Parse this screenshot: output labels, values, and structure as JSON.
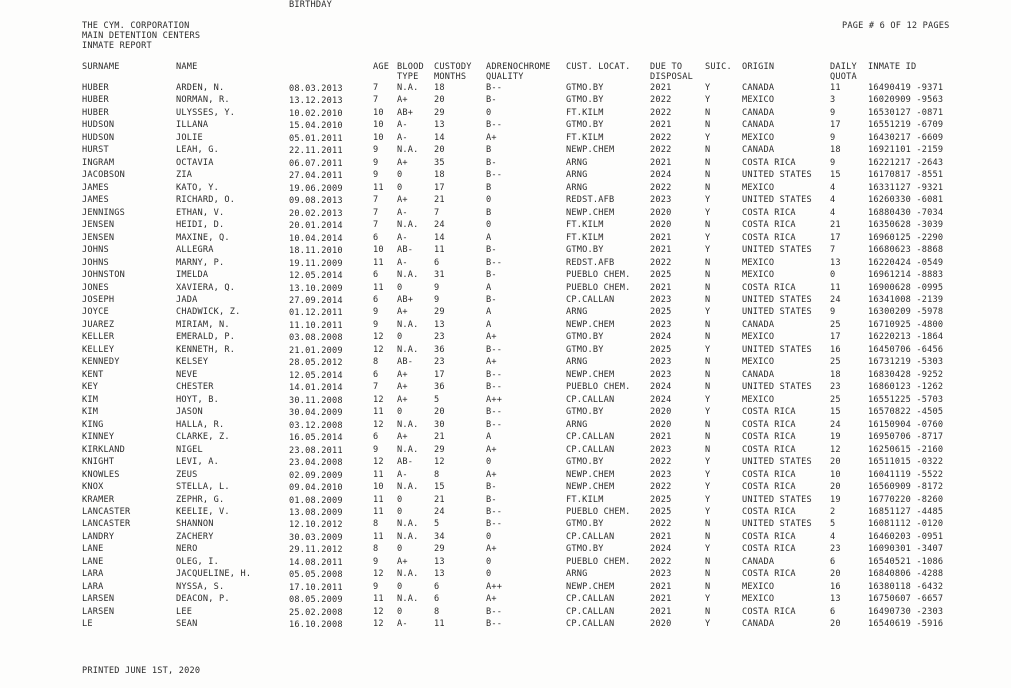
{
  "report": {
    "title_lines": [
      "THE CYM. CORPORATION",
      "MAIN DETENTION CENTERS",
      "INMATE REPORT"
    ],
    "page_label": "PAGE # 6 OF 12 PAGES",
    "footer": "PRINTED JUNE 1ST, 2020"
  },
  "columns": [
    [
      "SURNAME",
      ""
    ],
    [
      "NAME",
      ""
    ],
    [
      "BIRTHDAY",
      ""
    ],
    [
      "AGE",
      ""
    ],
    [
      "BLOOD",
      "TYPE"
    ],
    [
      "CUSTODY",
      "MONTHS"
    ],
    [
      "ADRENOCHROME",
      "QUALITY"
    ],
    [
      "CUST. LOCAT.",
      ""
    ],
    [
      "DUE TO",
      "DISPOSAL"
    ],
    [
      "SUIC.",
      ""
    ],
    [
      "ORIGIN",
      ""
    ],
    [
      "DAILY",
      "QUOTA"
    ],
    [
      "INMATE ID",
      ""
    ]
  ],
  "rows": [
    [
      "HUBER",
      "ARDEN, N.",
      "08.03.2013",
      "7",
      "N.A.",
      "18",
      "B--",
      "GTMO.BY",
      "2021",
      "Y",
      "CANADA",
      "11",
      "16490419 -9371"
    ],
    [
      "HUBER",
      "NORMAN, R.",
      "13.12.2013",
      "7",
      "A+",
      "20",
      "B-",
      "GTMO.BY",
      "2022",
      "Y",
      "MEXICO",
      "3",
      "16020909 -9563"
    ],
    [
      "HUBER",
      "ULYSSES, Y.",
      "10.02.2010",
      "10",
      "AB+",
      "29",
      "0",
      "FT.KILM",
      "2022",
      "N",
      "CANADA",
      "9",
      "16530127 -0871"
    ],
    [
      "HUDSON",
      "ILLANA",
      "15.04.2010",
      "10",
      "A-",
      "13",
      "B--",
      "GTMO.BY",
      "2021",
      "N",
      "CANADA",
      "17",
      "16551219 -6709"
    ],
    [
      "HUDSON",
      "JOLIE",
      "05.01.2011",
      "10",
      "A-",
      "14",
      "A+",
      "FT.KILM",
      "2022",
      "Y",
      "MEXICO",
      "9",
      "16430217 -6609"
    ],
    [
      "HURST",
      "LEAH, G.",
      "22.11.2011",
      "9",
      "N.A.",
      "20",
      "B",
      "NEWP.CHEM",
      "2022",
      "N",
      "CANADA",
      "18",
      "16921101 -2159"
    ],
    [
      "INGRAM",
      "OCTAVIA",
      "06.07.2011",
      "9",
      "A+",
      "35",
      "B-",
      "ARNG",
      "2021",
      "N",
      "COSTA RICA",
      "9",
      "16221217 -2643"
    ],
    [
      "JACOBSON",
      "ZIA",
      "27.04.2011",
      "9",
      "0",
      "18",
      "B--",
      "ARNG",
      "2024",
      "N",
      "UNITED STATES",
      "15",
      "16170817 -8551"
    ],
    [
      "JAMES",
      "KATO, Y.",
      "19.06.2009",
      "11",
      "0",
      "17",
      "B",
      "ARNG",
      "2022",
      "N",
      "MEXICO",
      "4",
      "16331127 -9321"
    ],
    [
      "JAMES",
      "RICHARD, O.",
      "09.08.2013",
      "7",
      "A+",
      "21",
      "0",
      "REDST.AFB",
      "2023",
      "Y",
      "UNITED STATES",
      "4",
      "16260330 -6081"
    ],
    [
      "JENNINGS",
      "ETHAN, V.",
      "20.02.2013",
      "7",
      "A-",
      "7",
      "B",
      "NEWP.CHEM",
      "2020",
      "Y",
      "COSTA RICA",
      "4",
      "16880430 -7034"
    ],
    [
      "JENSEN",
      "HEIDI, D.",
      "20.01.2014",
      "7",
      "N.A.",
      "24",
      "0",
      "FT.KILM",
      "2020",
      "N",
      "COSTA RICA",
      "21",
      "16350628 -3039"
    ],
    [
      "JENSEN",
      "MAXINE, Q.",
      "10.04.2014",
      "6",
      "A-",
      "14",
      "A",
      "FT.KILM",
      "2021",
      "Y",
      "COSTA RICA",
      "17",
      "16960125 -2290"
    ],
    [
      "JOHNS",
      "ALLEGRA",
      "18.11.2010",
      "10",
      "AB-",
      "11",
      "B-",
      "GTMO.BY",
      "2021",
      "Y",
      "UNITED STATES",
      "7",
      "16680623 -8868"
    ],
    [
      "JOHNS",
      "MARNY, P.",
      "19.11.2009",
      "11",
      "A-",
      "6",
      "B--",
      "REDST.AFB",
      "2022",
      "N",
      "MEXICO",
      "13",
      "16220424 -0549"
    ],
    [
      "JOHNSTON",
      "IMELDA",
      "12.05.2014",
      "6",
      "N.A.",
      "31",
      "B-",
      "PUEBLO CHEM.",
      "2025",
      "N",
      "MEXICO",
      "0",
      "16961214 -8883"
    ],
    [
      "JONES",
      "XAVIERA, Q.",
      "13.10.2009",
      "11",
      "0",
      "9",
      "A",
      "PUEBLO CHEM.",
      "2021",
      "N",
      "COSTA RICA",
      "11",
      "16900628 -0995"
    ],
    [
      "JOSEPH",
      "JADA",
      "27.09.2014",
      "6",
      "AB+",
      "9",
      "B-",
      "CP.CALLAN",
      "2023",
      "N",
      "UNITED STATES",
      "24",
      "16341008 -2139"
    ],
    [
      "JOYCE",
      "CHADWICK, Z.",
      "01.12.2011",
      "9",
      "A+",
      "29",
      "A",
      "ARNG",
      "2025",
      "Y",
      "UNITED STATES",
      "9",
      "16300209 -5978"
    ],
    [
      "JUAREZ",
      "MIRIAM, N.",
      "11.10.2011",
      "9",
      "N.A.",
      "13",
      "A",
      "NEWP.CHEM",
      "2023",
      "N",
      "CANADA",
      "25",
      "16710925 -4800"
    ],
    [
      "KELLER",
      "EMERALD, P.",
      "03.08.2008",
      "12",
      "0",
      "23",
      "A+",
      "GTMO.BY",
      "2024",
      "N",
      "MEXICO",
      "17",
      "16220213 -1864"
    ],
    [
      "KELLEY",
      "KENNETH, R.",
      "21.01.2009",
      "12",
      "N.A.",
      "36",
      "B--",
      "GTMO.BY",
      "2025",
      "Y",
      "UNITED STATES",
      "16",
      "16450706 -6456"
    ],
    [
      "KENNEDY",
      "KELSEY",
      "28.05.2012",
      "8",
      "AB-",
      "23",
      "A+",
      "ARNG",
      "2023",
      "N",
      "MEXICO",
      "25",
      "16731219 -5303"
    ],
    [
      "KENT",
      "NEVE",
      "12.05.2014",
      "6",
      "A+",
      "17",
      "B--",
      "NEWP.CHEM",
      "2023",
      "N",
      "CANADA",
      "18",
      "16830428 -9252"
    ],
    [
      "KEY",
      "CHESTER",
      "14.01.2014",
      "7",
      "A+",
      "36",
      "B--",
      "PUEBLO CHEM.",
      "2024",
      "N",
      "UNITED STATES",
      "23",
      "16860123 -1262"
    ],
    [
      "KIM",
      "HOYT, B.",
      "30.11.2008",
      "12",
      "A+",
      "5",
      "A++",
      "CP.CALLAN",
      "2024",
      "Y",
      "MEXICO",
      "25",
      "16551225 -5703"
    ],
    [
      "KIM",
      "JASON",
      "30.04.2009",
      "11",
      "0",
      "20",
      "B--",
      "GTMO.BY",
      "2020",
      "Y",
      "COSTA RICA",
      "15",
      "16570822 -4505"
    ],
    [
      "KING",
      "HALLA, R.",
      "03.12.2008",
      "12",
      "N.A.",
      "30",
      "B--",
      "ARNG",
      "2020",
      "N",
      "COSTA RICA",
      "24",
      "16150904 -0760"
    ],
    [
      "KINNEY",
      "CLARKE, Z.",
      "16.05.2014",
      "6",
      "A+",
      "21",
      "A",
      "CP.CALLAN",
      "2021",
      "N",
      "COSTA RICA",
      "19",
      "16950706 -8717"
    ],
    [
      "KIRKLAND",
      "NIGEL",
      "23.08.2011",
      "9",
      "N.A.",
      "29",
      "A+",
      "CP.CALLAN",
      "2023",
      "N",
      "COSTA RICA",
      "12",
      "16250615 -2160"
    ],
    [
      "KNIGHT",
      "LEVI, A.",
      "23.04.2008",
      "12",
      "AB-",
      "12",
      "0",
      "GTMO.BY",
      "2022",
      "Y",
      "UNITED STATES",
      "20",
      "16511015 -0322"
    ],
    [
      "KNOWLES",
      "ZEUS",
      "02.09.2009",
      "11",
      "A-",
      "8",
      "A+",
      "NEWP.CHEM",
      "2023",
      "Y",
      "COSTA RICA",
      "10",
      "16041119 -5522"
    ],
    [
      "KNOX",
      "STELLA, L.",
      "09.04.2010",
      "10",
      "N.A.",
      "15",
      "B-",
      "NEWP.CHEM",
      "2022",
      "Y",
      "COSTA RICA",
      "20",
      "16560909 -8172"
    ],
    [
      "KRAMER",
      "ZEPHR, G.",
      "01.08.2009",
      "11",
      "0",
      "21",
      "B-",
      "FT.KILM",
      "2025",
      "Y",
      "UNITED STATES",
      "19",
      "16770220 -8260"
    ],
    [
      "LANCASTER",
      "KEELIE, V.",
      "13.08.2009",
      "11",
      "0",
      "24",
      "B--",
      "PUEBLO CHEM.",
      "2025",
      "Y",
      "COSTA RICA",
      "2",
      "16851127 -4485"
    ],
    [
      "LANCASTER",
      "SHANNON",
      "12.10.2012",
      "8",
      "N.A.",
      "5",
      "B--",
      "GTMO.BY",
      "2022",
      "N",
      "UNITED STATES",
      "5",
      "16081112 -0120"
    ],
    [
      "LANDRY",
      "ZACHERY",
      "30.03.2009",
      "11",
      "N.A.",
      "34",
      "0",
      "CP.CALLAN",
      "2021",
      "N",
      "COSTA RICA",
      "4",
      "16460203 -0951"
    ],
    [
      "LANE",
      "NERO",
      "29.11.2012",
      "8",
      "0",
      "29",
      "A+",
      "GTMO.BY",
      "2024",
      "Y",
      "COSTA RICA",
      "23",
      "16090301 -3407"
    ],
    [
      "LANE",
      "OLEG, I.",
      "14.08.2011",
      "9",
      "A+",
      "13",
      "0",
      "PUEBLO CHEM.",
      "2022",
      "N",
      "CANADA",
      "6",
      "16540521 -1086"
    ],
    [
      "LARA",
      "JACQUELINE, H.",
      "05.05.2008",
      "12",
      "N.A.",
      "13",
      "0",
      "ARNG",
      "2023",
      "N",
      "COSTA RICA",
      "20",
      "16840806 -4288"
    ],
    [
      "LARA",
      "NYSSA, S.",
      "17.10.2011",
      "9",
      "0",
      "6",
      "A++",
      "NEWP.CHEM",
      "2021",
      "N",
      "MEXICO",
      "16",
      "16380118 -6432"
    ],
    [
      "LARSEN",
      "DEACON, P.",
      "08.05.2009",
      "11",
      "N.A.",
      "6",
      "A+",
      "CP.CALLAN",
      "2021",
      "Y",
      "MEXICO",
      "13",
      "16750607 -6657"
    ],
    [
      "LARSEN",
      "LEE",
      "25.02.2008",
      "12",
      "0",
      "8",
      "B--",
      "CP.CALLAN",
      "2021",
      "N",
      "COSTA RICA",
      "6",
      "16490730 -2303"
    ],
    [
      "LE",
      "SEAN",
      "16.10.2008",
      "12",
      "A-",
      "11",
      "B--",
      "CP.CALLAN",
      "2020",
      "Y",
      "CANADA",
      "20",
      "16540619 -5916"
    ]
  ]
}
